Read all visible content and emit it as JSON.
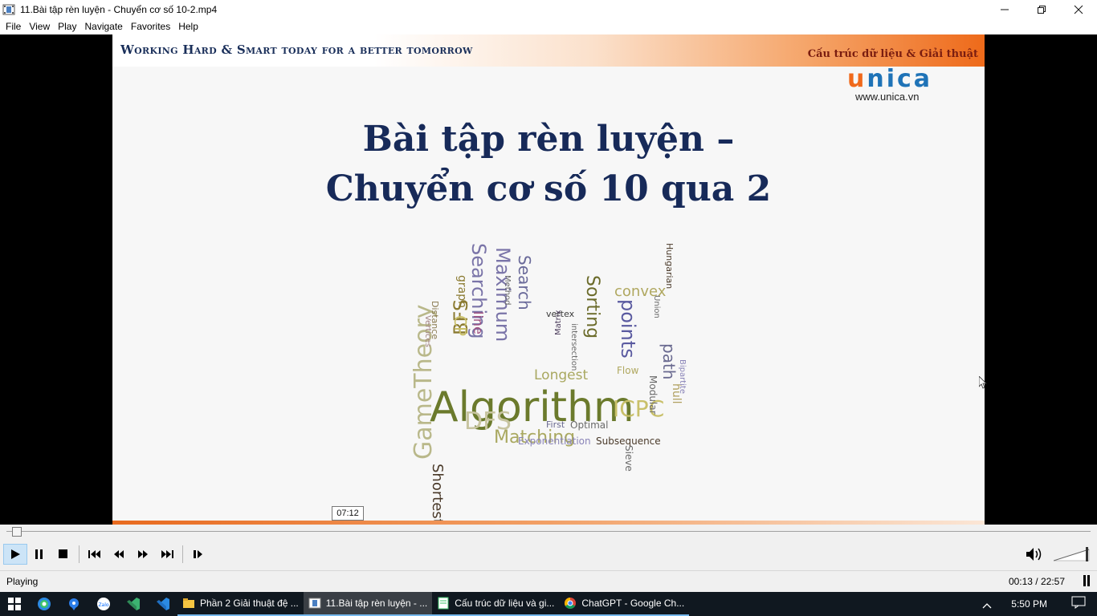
{
  "window": {
    "title": "11.Bài tập rèn luyện - Chuyển cơ số 10-2.mp4",
    "minimize": "—",
    "restore": "❐",
    "close": "✕"
  },
  "menu": [
    "File",
    "View",
    "Play",
    "Navigate",
    "Favorites",
    "Help"
  ],
  "slide": {
    "banner_left": "Working Hard & Smart today for a better tomorrow",
    "banner_right": "Cấu trúc dữ liệu & Giải thuật",
    "logo_u": "u",
    "logo_nica": "nica",
    "site": "www.unica.vn",
    "title_line1": "Bài tập rèn luyện –",
    "title_line2": "Chuyển cơ số 10 qua 2",
    "wordcloud": [
      {
        "t": "Algorithm",
        "c": "#6b7a2c"
      },
      {
        "t": "GameTheory",
        "c": "#b9b88a"
      },
      {
        "t": "Shortest",
        "c": "#4a3a2a"
      },
      {
        "t": "DFS",
        "c": "#c7c4a0"
      },
      {
        "t": "Matching",
        "c": "#a9a860"
      },
      {
        "t": "ICPC",
        "c": "#c9c06a"
      },
      {
        "t": "BFS",
        "c": "#8a7a30"
      },
      {
        "t": "Searching",
        "c": "#7a74a8"
      },
      {
        "t": "Maximum",
        "c": "#7a74a8"
      },
      {
        "t": "Search",
        "c": "#6a6a9a"
      },
      {
        "t": "Sorting",
        "c": "#6b6b2a"
      },
      {
        "t": "points",
        "c": "#5a5aa0"
      },
      {
        "t": "convex",
        "c": "#b0a860"
      },
      {
        "t": "path",
        "c": "#6a6a90"
      },
      {
        "t": "hull",
        "c": "#b0a060"
      },
      {
        "t": "Longest",
        "c": "#a9a860"
      },
      {
        "t": "Optimal",
        "c": "#6a6a6a"
      },
      {
        "t": "Subsequence",
        "c": "#4a3a2a"
      },
      {
        "t": "Exponentiation",
        "c": "#8a84b8"
      },
      {
        "t": "graph",
        "c": "#8a7a30"
      },
      {
        "t": "line",
        "c": "#a05080"
      },
      {
        "t": "CP",
        "c": "#c9c06a"
      },
      {
        "t": "vertex",
        "c": "#3a3a3a"
      },
      {
        "t": "Hungarian",
        "c": "#4a3a2a"
      },
      {
        "t": "Flow",
        "c": "#b0a860"
      },
      {
        "t": "Modular",
        "c": "#6a6a6a"
      },
      {
        "t": "Bipartite",
        "c": "#8a84b8"
      },
      {
        "t": "Distance",
        "c": "#8a7a50"
      },
      {
        "t": "Vertices",
        "c": "#a08080"
      },
      {
        "t": "Sieve",
        "c": "#6a6a6a"
      },
      {
        "t": "Matrix",
        "c": "#4a3a5a"
      },
      {
        "t": "intersection",
        "c": "#6a6a6a"
      },
      {
        "t": "Method",
        "c": "#6a6a6a"
      },
      {
        "t": "First",
        "c": "#6a6a90"
      },
      {
        "t": "Union",
        "c": "#6a6a6a"
      }
    ]
  },
  "tooltip": "07:12",
  "seek": {
    "fraction": 0.0096
  },
  "controls": [
    "play-button",
    "pause-button",
    "stop-button",
    "previous-button",
    "rewind-button",
    "forward-button",
    "next-button",
    "frame-step-button"
  ],
  "status": {
    "text": "Playing",
    "time": "00:13 / 22:57"
  },
  "taskbar": {
    "apps": [
      {
        "label": "Phần 2 Giải thuật đệ ...",
        "icon": "folder-icon"
      },
      {
        "label": "11.Bài tập rèn luyện - ...",
        "icon": "media-player-icon"
      },
      {
        "label": "Cấu trúc dữ liệu và gi...",
        "icon": "notepad-icon"
      },
      {
        "label": "ChatGPT - Google Ch...",
        "icon": "chrome-icon"
      }
    ],
    "clock": "5:50 PM"
  },
  "colors": {
    "accent_orange": "#ee6a1a",
    "title_navy": "#172a59",
    "taskbar_bg": "#101820"
  }
}
